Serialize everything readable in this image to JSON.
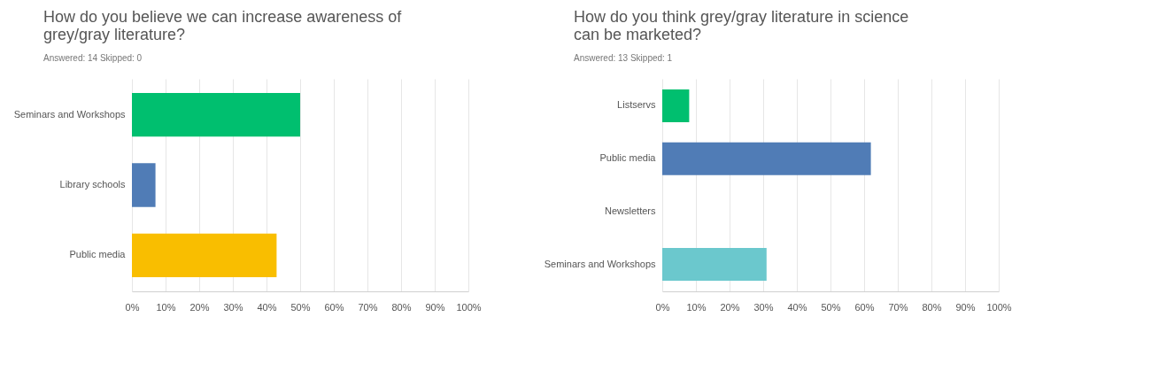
{
  "chart_data": [
    {
      "type": "bar",
      "orientation": "horizontal",
      "title": "How do you believe we can increase awareness of grey/gray literature?",
      "subtitle": "Answered: 14   Skipped: 0",
      "categories": [
        "Seminars and Workshops",
        "Library schools",
        "Public media"
      ],
      "values": [
        50,
        7,
        43
      ],
      "colors": [
        "#00bf6f",
        "#507cb6",
        "#f9be00"
      ],
      "xlim": [
        0,
        100
      ],
      "xticks": [
        {
          "value": 0,
          "label": "0%"
        },
        {
          "value": 10,
          "label": "10%"
        },
        {
          "value": 20,
          "label": "20%"
        },
        {
          "value": 30,
          "label": "30%"
        },
        {
          "value": 40,
          "label": "40%"
        },
        {
          "value": 50,
          "label": "50%"
        },
        {
          "value": 60,
          "label": "60%"
        },
        {
          "value": 70,
          "label": "70%"
        },
        {
          "value": 80,
          "label": "80%"
        },
        {
          "value": 90,
          "label": "90%"
        },
        {
          "value": 100,
          "label": "100%"
        }
      ],
      "grid": "x",
      "legend": false
    },
    {
      "type": "bar",
      "orientation": "horizontal",
      "title": "How do you think grey/gray literature in science can be marketed?",
      "subtitle": "Answered: 13   Skipped: 1",
      "categories": [
        "Listservs",
        "Public media",
        "Newsletters",
        "Seminars and Workshops"
      ],
      "values": [
        8,
        62,
        0,
        31
      ],
      "colors": [
        "#00bf6f",
        "#507cb6",
        "#f9be00",
        "#6bc8cd"
      ],
      "xlim": [
        0,
        100
      ],
      "xticks": [
        {
          "value": 0,
          "label": "0%"
        },
        {
          "value": 10,
          "label": "10%"
        },
        {
          "value": 20,
          "label": "20%"
        },
        {
          "value": 30,
          "label": "30%"
        },
        {
          "value": 40,
          "label": "40%"
        },
        {
          "value": 50,
          "label": "50%"
        },
        {
          "value": 60,
          "label": "60%"
        },
        {
          "value": 70,
          "label": "70%"
        },
        {
          "value": 80,
          "label": "80%"
        },
        {
          "value": 90,
          "label": "90%"
        },
        {
          "value": 100,
          "label": "100%"
        }
      ],
      "grid": "x",
      "legend": false
    }
  ]
}
